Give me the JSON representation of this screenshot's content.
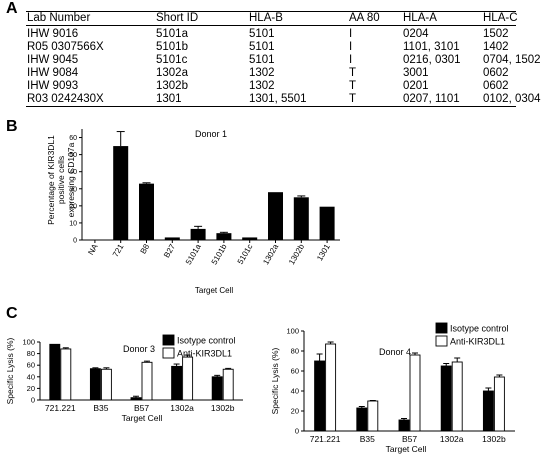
{
  "panels": {
    "a": {
      "letter": "A"
    },
    "b": {
      "letter": "B"
    },
    "c": {
      "letter": "C"
    }
  },
  "table": {
    "headers": [
      "Lab Number",
      "Short ID",
      "HLA-B",
      "AA 80",
      "HLA-A",
      "HLA-C"
    ],
    "rows": [
      [
        "IHW 9016",
        "5101a",
        "5101",
        "I",
        "0204",
        "1502"
      ],
      [
        "R05 0307566X",
        "5101b",
        "5101",
        "I",
        "1101, 3101",
        "1402"
      ],
      [
        "IHW 9045",
        "5101c",
        "5101",
        "I",
        "0216, 0301",
        "0704, 1502"
      ],
      [
        "IHW 9084",
        "1302a",
        "1302",
        "T",
        "3001",
        "0602"
      ],
      [
        "IHW 9093",
        "1302b",
        "1302",
        "T",
        "0201",
        "0602"
      ],
      [
        "R03 0242430X",
        "1301",
        "1301, 5501",
        "T",
        "0207, 1101",
        "0102, 0304"
      ]
    ]
  },
  "chart_data": [
    {
      "type": "bar",
      "title": "Donor 1",
      "xlabel": "Target Cell",
      "ylabel": "Percentage of KIR3DL1 positive cells expressing CD107a",
      "ylim": [
        0,
        65
      ],
      "yticks": [
        0,
        10,
        20,
        30,
        40,
        50,
        60
      ],
      "categories": [
        "NA",
        "721",
        "B8",
        "B27",
        "5101a",
        "5101b",
        "5101c",
        "1302a",
        "1302b",
        "1301"
      ],
      "values": [
        0,
        55,
        33,
        1.5,
        6.5,
        4,
        1.5,
        28,
        25,
        19.5
      ],
      "errors": [
        0,
        8.5,
        0.5,
        0.3,
        1.5,
        0.5,
        0.3,
        0.3,
        0.8,
        0.3
      ],
      "color": "#000000",
      "grid": false
    },
    {
      "type": "bar",
      "title": "Donor 3",
      "xlabel": "Target Cell",
      "ylabel": "Specific Lysis (%)",
      "ylim": [
        0,
        100
      ],
      "yticks": [
        0,
        20,
        40,
        60,
        80,
        100
      ],
      "categories": [
        "721.221",
        "B35",
        "B57",
        "1302a",
        "1302b"
      ],
      "series": [
        {
          "name": "Isotype control",
          "values": [
            96,
            54,
            4,
            58,
            40
          ],
          "errors": [
            0,
            1.5,
            2.5,
            4,
            2.5
          ],
          "color": "#000000"
        },
        {
          "name": "Anti-KIR3DL1",
          "values": [
            88,
            53,
            65,
            74,
            53
          ],
          "errors": [
            2,
            2.5,
            2,
            3.5,
            1.5
          ],
          "color": "#ffffff"
        }
      ],
      "legend": "top-right",
      "grid": false
    },
    {
      "type": "bar",
      "title": "Donor 4",
      "xlabel": "Target Cell",
      "ylabel": "Specific Lysis (%)",
      "ylim": [
        0,
        100
      ],
      "yticks": [
        0,
        20,
        40,
        60,
        80,
        100
      ],
      "categories": [
        "721.221",
        "B35",
        "B57",
        "1302a",
        "1302b"
      ],
      "series": [
        {
          "name": "Isotype control",
          "values": [
            70,
            23,
            11,
            65,
            40
          ],
          "errors": [
            7,
            1.5,
            1.5,
            2.5,
            3
          ],
          "color": "#000000"
        },
        {
          "name": "Anti-KIR3DL1",
          "values": [
            87,
            30,
            76,
            69,
            54
          ],
          "errors": [
            2,
            0.5,
            2,
            4,
            2
          ],
          "color": "#ffffff"
        }
      ],
      "legend": "top-right",
      "grid": false
    }
  ]
}
